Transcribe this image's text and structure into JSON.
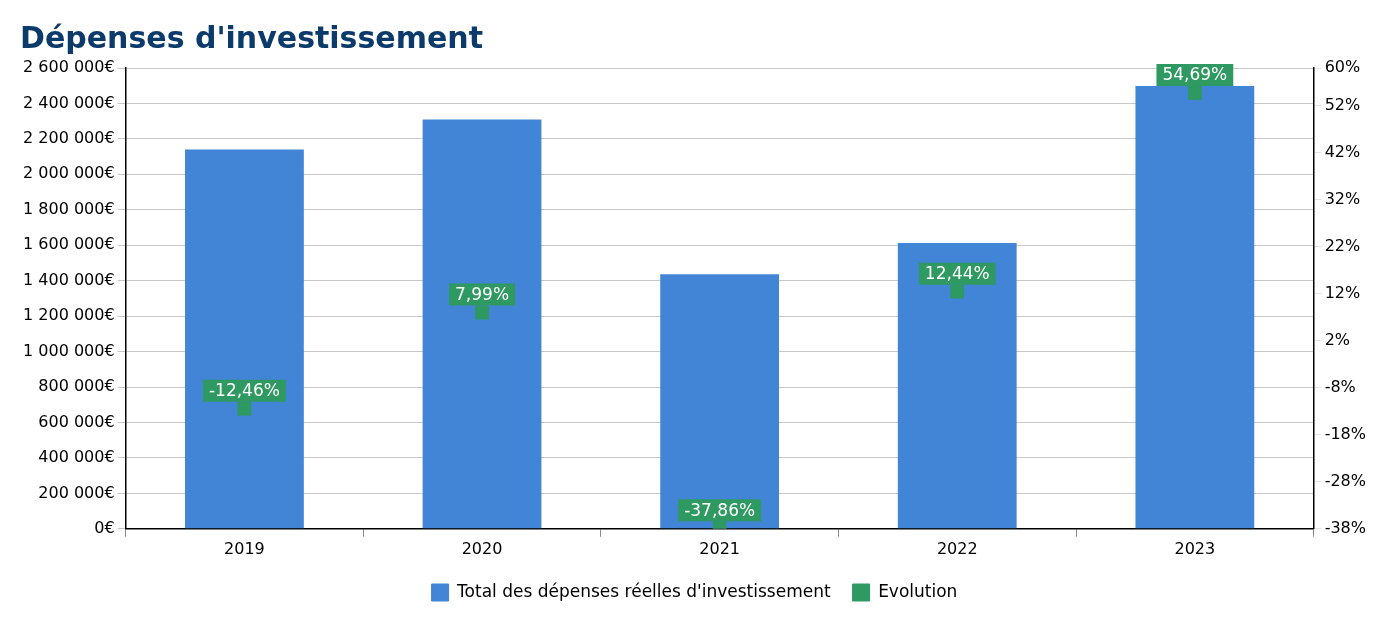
{
  "chart_data": {
    "type": "bar",
    "title": "Dépenses d'investissement",
    "categories": [
      "2019",
      "2020",
      "2021",
      "2022",
      "2023"
    ],
    "series": [
      {
        "name": "Total des dépenses réelles d'investissement",
        "color": "#4285d6",
        "values": [
          2140000,
          2310000,
          1436000,
          1612000,
          2498000
        ]
      },
      {
        "name": "Evolution",
        "type": "scatter",
        "axis": "y2",
        "marker": "square",
        "color": "#2e9960",
        "values": [
          -12.46,
          7.99,
          -37.86,
          12.44,
          54.69
        ],
        "value_labels": [
          "-12,46%",
          "7,99%",
          "-37,86%",
          "12,44%",
          "54,69%"
        ]
      }
    ],
    "ylim": [
      0,
      2600000
    ],
    "yticks": [
      {
        "value": 0,
        "label": "0€"
      },
      {
        "value": 200000,
        "label": "200 000€"
      },
      {
        "value": 400000,
        "label": "400 000€"
      },
      {
        "value": 600000,
        "label": "600 000€"
      },
      {
        "value": 800000,
        "label": "800 000€"
      },
      {
        "value": 1000000,
        "label": "1 000 000€"
      },
      {
        "value": 1200000,
        "label": "1 200 000€"
      },
      {
        "value": 1400000,
        "label": "1 400 000€"
      },
      {
        "value": 1600000,
        "label": "1 600 000€"
      },
      {
        "value": 1800000,
        "label": "1 800 000€"
      },
      {
        "value": 2000000,
        "label": "2 000 000€"
      },
      {
        "value": 2200000,
        "label": "2 200 000€"
      },
      {
        "value": 2400000,
        "label": "2 400 000€"
      },
      {
        "value": 2600000,
        "label": "2 600 000€"
      }
    ],
    "y2lim": [
      -38,
      60
    ],
    "y2ticks": [
      {
        "value": -38,
        "label": "-38%"
      },
      {
        "value": -28,
        "label": "-28%"
      },
      {
        "value": -18,
        "label": "-18%"
      },
      {
        "value": -8,
        "label": "-8%"
      },
      {
        "value": 2,
        "label": "2%"
      },
      {
        "value": 12,
        "label": "12%"
      },
      {
        "value": 22,
        "label": "22%"
      },
      {
        "value": 32,
        "label": "32%"
      },
      {
        "value": 42,
        "label": "42%"
      },
      {
        "value": 52,
        "label": "52%"
      },
      {
        "value": 60,
        "label": "60%"
      }
    ],
    "grid": "y",
    "legend": "bottom"
  }
}
